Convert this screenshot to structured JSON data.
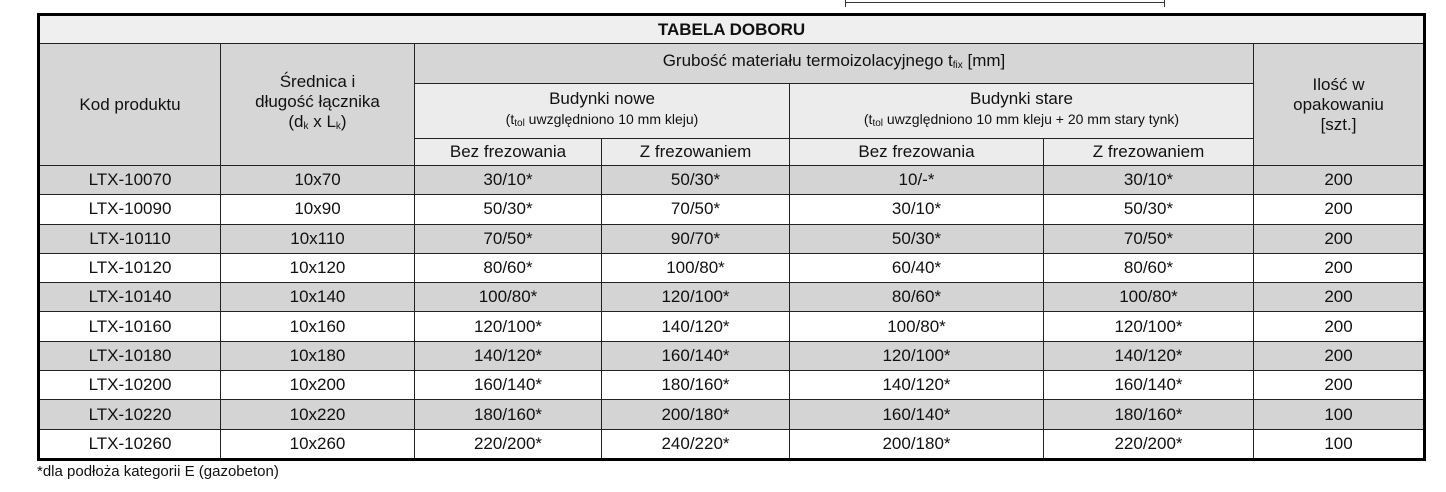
{
  "title": "TABELA DOBORU",
  "headers": {
    "code": "Kod produktu",
    "size_line1": "Średnica i",
    "size_line2": "długość łącznika",
    "size_line3_open": "(d",
    "size_sub_k1": "k",
    "size_line3_mid": " x L",
    "size_sub_k2": "k",
    "size_line3_close": ")",
    "thickness_prefix": "Grubość materiału termoizolacyjnego t",
    "thickness_sub": "fix",
    "thickness_suffix": " [mm]",
    "new_buildings": "Budynki nowe",
    "new_note_open": "(t",
    "new_note_sub": "tol",
    "new_note_rest": " uwzględniono 10 mm kleju)",
    "old_buildings": "Budynki stare",
    "old_note_open": "(t",
    "old_note_sub": "tol",
    "old_note_rest": " uwzględniono 10 mm kleju + 20 mm stary tynk)",
    "without_milling": "Bez frezowania",
    "with_milling": "Z frezowaniem",
    "qty_line1": "Ilość w",
    "qty_line2": "opakowaniu",
    "qty_line3": "[szt.]"
  },
  "rows": [
    [
      "LTX-10070",
      "10x70",
      "30/10*",
      "50/30*",
      "10/-*",
      "30/10*",
      "200"
    ],
    [
      "LTX-10090",
      "10x90",
      "50/30*",
      "70/50*",
      "30/10*",
      "50/30*",
      "200"
    ],
    [
      "LTX-10110",
      "10x110",
      "70/50*",
      "90/70*",
      "50/30*",
      "70/50*",
      "200"
    ],
    [
      "LTX-10120",
      "10x120",
      "80/60*",
      "100/80*",
      "60/40*",
      "80/60*",
      "200"
    ],
    [
      "LTX-10140",
      "10x140",
      "100/80*",
      "120/100*",
      "80/60*",
      "100/80*",
      "200"
    ],
    [
      "LTX-10160",
      "10x160",
      "120/100*",
      "140/120*",
      "100/80*",
      "120/100*",
      "200"
    ],
    [
      "LTX-10180",
      "10x180",
      "140/120*",
      "160/140*",
      "120/100*",
      "140/120*",
      "200"
    ],
    [
      "LTX-10200",
      "10x200",
      "160/140*",
      "180/160*",
      "140/120*",
      "160/140*",
      "200"
    ],
    [
      "LTX-10220",
      "10x220",
      "180/160*",
      "200/180*",
      "160/140*",
      "180/160*",
      "100"
    ],
    [
      "LTX-10260",
      "10x260",
      "220/200*",
      "240/220*",
      "200/180*",
      "220/200*",
      "100"
    ]
  ],
  "footnote": "*dla podłoża kategorii E (gazobeton)",
  "colors": {
    "header_gray": "#d6d6d6",
    "row_gray": "#d4d4d4",
    "subheader": "#ececec",
    "border": "#000000"
  }
}
